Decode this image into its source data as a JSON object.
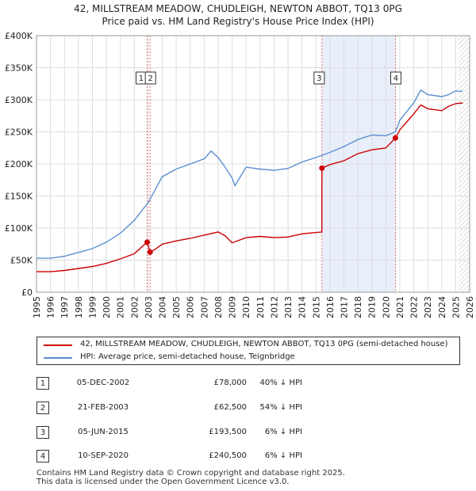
{
  "chart_data": {
    "type": "line",
    "title": "42, MILLSTREAM MEADOW, CHUDLEIGH, NEWTON ABBOT, TQ13 0PG",
    "subtitle": "Price paid vs. HM Land Registry's House Price Index (HPI)",
    "xlim": [
      1995,
      2026
    ],
    "ylim": [
      0,
      400000
    ],
    "x_ticks": [
      1995,
      1996,
      1997,
      1998,
      1999,
      2000,
      2001,
      2002,
      2003,
      2004,
      2005,
      2006,
      2007,
      2008,
      2009,
      2010,
      2011,
      2012,
      2013,
      2014,
      2015,
      2016,
      2017,
      2018,
      2019,
      2020,
      2021,
      2022,
      2023,
      2024,
      2025,
      2026
    ],
    "y_ticks": [
      {
        "value": 0,
        "label": "£0"
      },
      {
        "value": 50000,
        "label": "£50K"
      },
      {
        "value": 100000,
        "label": "£100K"
      },
      {
        "value": 150000,
        "label": "£150K"
      },
      {
        "value": 200000,
        "label": "£200K"
      },
      {
        "value": 250000,
        "label": "£250K"
      },
      {
        "value": 300000,
        "label": "£300K"
      },
      {
        "value": 350000,
        "label": "£350K"
      },
      {
        "value": 400000,
        "label": "£400K"
      }
    ],
    "shaded_region": [
      2015.43,
      2020.69
    ],
    "forecast_hatch_from": 2025.2,
    "colors": {
      "property": "#cc0000",
      "hpi": "#5b8fcf",
      "vline": "#e07070",
      "shade": "#e8eefa",
      "grid": "#dddddd"
    },
    "series": [
      {
        "name": "42, MILLSTREAM MEADOW, CHUDLEIGH, NEWTON ABBOT, TQ13 0PG (semi-detached house)",
        "x": [
          1995,
          1996,
          1997,
          1998,
          1999,
          2000,
          2001,
          2002,
          2002.5,
          2002.92,
          2003.13,
          2003.5,
          2004,
          2005,
          2006,
          2007,
          2008,
          2008.5,
          2009,
          2010,
          2011,
          2012,
          2013,
          2014,
          2015.42,
          2015.43,
          2016,
          2017,
          2018,
          2019,
          2020,
          2020.69,
          2021,
          2022,
          2022.5,
          2023,
          2024,
          2024.5,
          2025,
          2025.5
        ],
        "values": [
          32000,
          32000,
          34000,
          37000,
          40000,
          45000,
          52000,
          60000,
          70000,
          78000,
          62500,
          67000,
          75000,
          80000,
          84000,
          89000,
          94000,
          88000,
          77000,
          85000,
          87000,
          85000,
          86000,
          91000,
          94000,
          193500,
          199000,
          205000,
          216000,
          222000,
          225000,
          240500,
          253000,
          278000,
          292000,
          286000,
          283000,
          290000,
          294000,
          295000
        ]
      },
      {
        "name": "HPI: Average price, semi-detached house, Teignbridge",
        "x": [
          1995,
          1996,
          1997,
          1998,
          1999,
          2000,
          2001,
          2002,
          2003,
          2003.5,
          2004,
          2005,
          2006,
          2007,
          2007.5,
          2008,
          2008.5,
          2009,
          2009.2,
          2010,
          2011,
          2012,
          2013,
          2014,
          2015,
          2016,
          2017,
          2018,
          2019,
          2020,
          2020.69,
          2021,
          2022,
          2022.5,
          2023,
          2024,
          2024.5,
          2025,
          2025.5
        ],
        "values": [
          53000,
          53000,
          56000,
          62000,
          68000,
          78000,
          92000,
          112000,
          140000,
          160000,
          180000,
          192000,
          200000,
          208000,
          220000,
          210000,
          195000,
          178000,
          166000,
          195000,
          192000,
          190000,
          193000,
          203000,
          210000,
          218000,
          227000,
          238000,
          245000,
          244000,
          250000,
          268000,
          295000,
          315000,
          308000,
          305000,
          308000,
          314000,
          313000
        ]
      }
    ],
    "markers": [
      {
        "id": "1",
        "x": 2002.92,
        "y": 78000
      },
      {
        "id": "2",
        "x": 2003.13,
        "y": 62500
      },
      {
        "id": "3",
        "x": 2015.43,
        "y": 193500
      },
      {
        "id": "4",
        "x": 2020.69,
        "y": 240500
      }
    ],
    "legend": {
      "property_label": "42, MILLSTREAM MEADOW, CHUDLEIGH, NEWTON ABBOT, TQ13 0PG (semi-detached house)",
      "hpi_label": "HPI: Average price, semi-detached house, Teignbridge"
    }
  },
  "transactions": [
    {
      "id": "1",
      "date": "05-DEC-2002",
      "price": "£78,000",
      "delta": "40% ↓ HPI"
    },
    {
      "id": "2",
      "date": "21-FEB-2003",
      "price": "£62,500",
      "delta": "54% ↓ HPI"
    },
    {
      "id": "3",
      "date": "05-JUN-2015",
      "price": "£193,500",
      "delta": "6% ↓ HPI"
    },
    {
      "id": "4",
      "date": "10-SEP-2020",
      "price": "£240,500",
      "delta": "6% ↓ HPI"
    }
  ],
  "footer": {
    "line1": "Contains HM Land Registry data © Crown copyright and database right 2025.",
    "line2": "This data is licensed under the Open Government Licence v3.0."
  }
}
